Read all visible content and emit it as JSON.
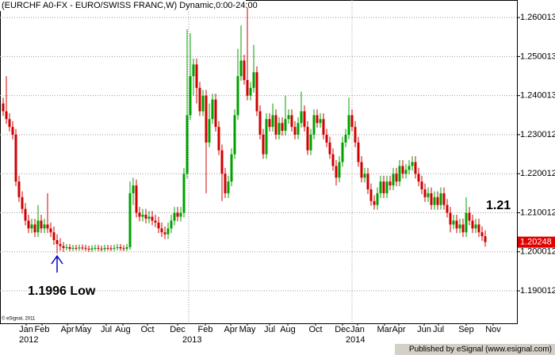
{
  "chart_data": {
    "type": "candlestick",
    "title": "(EURCHF A0-FX - EURO/SWISS FRANC,W) Dynamic,0:00-24:00",
    "copyright": "© eSignal, 2011",
    "footer": "Published by eSignal (www.esignal.com)",
    "annotations": [
      {
        "text": "1.1996 Low",
        "x": 17,
        "y": 1.1996
      },
      {
        "text": "1.21",
        "x": 149,
        "y": 1.21
      }
    ],
    "last_price": 1.20248,
    "up_color": "#00a000",
    "down_color": "#d00000",
    "last_price_color": "#e00000",
    "annotation_arrow_color": "#0000cc",
    "grid": true,
    "xlim": [
      -1,
      162
    ],
    "ylim": [
      1.1817,
      1.2645
    ],
    "yticks": [
      1.190012,
      1.200012,
      1.210012,
      1.220012,
      1.230012,
      1.240013,
      1.250013,
      1.260013
    ],
    "xticks": [
      {
        "value": 7.25,
        "label": "Jan"
      },
      {
        "value": 12.25,
        "label": "Feb"
      },
      {
        "value": 20.25,
        "label": "Apr"
      },
      {
        "value": 25.25,
        "label": "May"
      },
      {
        "value": 32.5,
        "label": "Jul"
      },
      {
        "value": 37.75,
        "label": "Aug"
      },
      {
        "value": 45.5,
        "label": "Oct"
      },
      {
        "value": 55,
        "label": "Dec"
      },
      {
        "value": 63.75,
        "label": "Feb"
      },
      {
        "value": 71.75,
        "label": "Apr"
      },
      {
        "value": 77,
        "label": "May"
      },
      {
        "value": 84,
        "label": "Jul"
      },
      {
        "value": 89.75,
        "label": "Aug"
      },
      {
        "value": 98.5,
        "label": "Oct"
      },
      {
        "value": 107,
        "label": "Dec"
      },
      {
        "value": 111.75,
        "label": "Jan"
      },
      {
        "value": 120.25,
        "label": "Mar"
      },
      {
        "value": 124.75,
        "label": "Apr"
      },
      {
        "value": 132.75,
        "label": "Jun"
      },
      {
        "value": 137.25,
        "label": "Jul"
      },
      {
        "value": 146,
        "label": "Sep"
      },
      {
        "value": 154.5,
        "label": "Nov"
      }
    ],
    "year_ticks": [
      {
        "value": 7,
        "label": "2012"
      },
      {
        "value": 58.5,
        "label": "2013"
      },
      {
        "value": 110,
        "label": "2014"
      }
    ],
    "open": [
      1.238,
      1.236,
      1.234,
      1.232,
      1.23,
      1.218,
      1.214,
      1.211,
      1.208,
      1.206,
      1.207,
      1.205,
      1.208,
      1.206,
      1.207,
      1.206,
      1.205,
      1.203,
      1.202,
      1.2015,
      1.201,
      1.2012,
      1.2008,
      1.201,
      1.2009,
      1.2011,
      1.201,
      1.2008,
      1.2006,
      1.2009,
      1.201,
      1.2008,
      1.2007,
      1.201,
      1.2009,
      1.2008,
      1.201,
      1.2012,
      1.2009,
      1.2008,
      1.2012,
      1.215,
      1.217,
      1.21,
      1.209,
      1.2095,
      1.2085,
      1.209,
      1.208,
      1.2075,
      1.206,
      1.205,
      1.2045,
      1.206,
      1.208,
      1.21,
      1.209,
      1.21,
      1.22,
      1.235,
      1.245,
      1.248,
      1.242,
      1.236,
      1.24,
      1.228,
      1.234,
      1.239,
      1.232,
      1.226,
      1.22,
      1.215,
      1.218,
      1.225,
      1.235,
      1.245,
      1.249,
      1.244,
      1.24,
      1.242,
      1.246,
      1.236,
      1.23,
      1.225,
      1.234,
      1.232,
      1.235,
      1.23,
      1.233,
      1.231,
      1.234,
      1.235,
      1.232,
      1.23,
      1.233,
      1.236,
      1.232,
      1.226,
      1.23,
      1.235,
      1.233,
      1.234,
      1.23,
      1.228,
      1.225,
      1.222,
      1.219,
      1.223,
      1.228,
      1.23,
      1.235,
      1.232,
      1.228,
      1.223,
      1.219,
      1.22,
      1.216,
      1.213,
      1.212,
      1.215,
      1.218,
      1.215,
      1.218,
      1.217,
      1.22,
      1.218,
      1.222,
      1.22,
      1.221,
      1.222,
      1.223,
      1.22,
      1.218,
      1.216,
      1.214,
      1.215,
      1.212,
      1.214,
      1.212,
      1.215,
      1.212,
      1.21,
      1.207,
      1.208,
      1.206,
      1.207,
      1.205,
      1.21,
      1.208,
      1.206,
      1.207,
      1.205,
      1.204
    ],
    "high": [
      1.2395,
      1.245,
      1.2355,
      1.2335,
      1.2315,
      1.2195,
      1.2155,
      1.2125,
      1.2095,
      1.2085,
      1.2085,
      1.212,
      1.2095,
      1.2085,
      1.215,
      1.2075,
      1.2065,
      1.2045,
      1.2035,
      1.2025,
      1.202,
      1.202,
      1.2018,
      1.2018,
      1.2019,
      1.2019,
      1.2018,
      1.2016,
      1.2017,
      1.2018,
      1.2018,
      1.2016,
      1.2018,
      1.2018,
      1.2017,
      1.2018,
      1.202,
      1.202,
      1.2017,
      1.202,
      1.218,
      1.219,
      1.2185,
      1.2115,
      1.211,
      1.211,
      1.2105,
      1.2105,
      1.2095,
      1.209,
      1.2075,
      1.2065,
      1.2075,
      1.2095,
      1.2115,
      1.2115,
      1.2115,
      1.2215,
      1.257,
      1.256,
      1.2495,
      1.2495,
      1.2435,
      1.2415,
      1.2415,
      1.238,
      1.2405,
      1.2405,
      1.2335,
      1.2275,
      1.2215,
      1.2195,
      1.2265,
      1.2365,
      1.252,
      1.258,
      1.2505,
      1.2625,
      1.2435,
      1.253,
      1.2475,
      1.2375,
      1.2315,
      1.2355,
      1.2355,
      1.238,
      1.2365,
      1.2345,
      1.2345,
      1.24,
      1.2365,
      1.2365,
      1.2335,
      1.2345,
      1.241,
      1.2375,
      1.2335,
      1.2315,
      1.2365,
      1.2365,
      1.2355,
      1.2355,
      1.2315,
      1.2295,
      1.2265,
      1.2235,
      1.2245,
      1.2295,
      1.2315,
      1.2395,
      1.2365,
      1.2335,
      1.2295,
      1.2245,
      1.2215,
      1.2215,
      1.2175,
      1.2145,
      1.2165,
      1.2195,
      1.2195,
      1.2195,
      1.2195,
      1.2215,
      1.2215,
      1.2235,
      1.2235,
      1.2225,
      1.2235,
      1.2245,
      1.2245,
      1.2215,
      1.2195,
      1.2175,
      1.2165,
      1.2165,
      1.2155,
      1.2155,
      1.2165,
      1.2165,
      1.2135,
      1.2115,
      1.2095,
      1.2095,
      1.2085,
      1.2085,
      1.214,
      1.2115,
      1.2095,
      1.2085,
      1.2085,
      1.2065,
      1.2055
    ],
    "low": [
      1.2348,
      1.2328,
      1.2308,
      1.2288,
      1.2168,
      1.2128,
      1.2098,
      1.2068,
      1.2048,
      1.2048,
      1.2038,
      1.2038,
      1.2048,
      1.2048,
      1.2048,
      1.2038,
      1.2018,
      1.1996,
      1.2003,
      1.2,
      1.2004,
      1.2002,
      1.2002,
      1.2003,
      1.2003,
      1.2004,
      1.2002,
      1.2,
      1.2,
      1.2003,
      1.2002,
      1.2001,
      1.2001,
      1.2003,
      1.2002,
      1.2002,
      1.2004,
      1.2003,
      1.2002,
      1.2002,
      1.2005,
      1.212,
      1.2088,
      1.2078,
      1.2078,
      1.2073,
      1.2073,
      1.2068,
      1.2063,
      1.2048,
      1.2038,
      1.2033,
      1.2033,
      1.2048,
      1.2068,
      1.2078,
      1.2078,
      1.2088,
      1.2188,
      1.2338,
      1.24,
      1.238,
      1.2348,
      1.2348,
      1.215,
      1.2268,
      1.2328,
      1.2308,
      1.2248,
      1.213,
      1.2138,
      1.2138,
      1.2168,
      1.2238,
      1.2338,
      1.2438,
      1.2428,
      1.2388,
      1.2388,
      1.2408,
      1.2348,
      1.2288,
      1.2238,
      1.2238,
      1.2308,
      1.2308,
      1.2288,
      1.2288,
      1.2298,
      1.2298,
      1.2328,
      1.2308,
      1.2288,
      1.2288,
      1.2318,
      1.2308,
      1.2248,
      1.2248,
      1.2288,
      1.2318,
      1.2318,
      1.2288,
      1.2268,
      1.2238,
      1.2208,
      1.217,
      1.2178,
      1.2218,
      1.2268,
      1.2288,
      1.2308,
      1.2268,
      1.2218,
      1.2178,
      1.2178,
      1.2148,
      1.2118,
      1.2108,
      1.2108,
      1.2138,
      1.2138,
      1.2138,
      1.2158,
      1.2158,
      1.2168,
      1.2168,
      1.2188,
      1.2188,
      1.2198,
      1.2208,
      1.2188,
      1.2168,
      1.2148,
      1.2128,
      1.2128,
      1.2108,
      1.2108,
      1.2108,
      1.2108,
      1.2108,
      1.2088,
      1.205,
      1.2058,
      1.2048,
      1.2048,
      1.2038,
      1.2038,
      1.2068,
      1.2048,
      1.2048,
      1.2038,
      1.2028,
      1.2013
    ],
    "close": [
      1.236,
      1.234,
      1.232,
      1.23,
      1.218,
      1.214,
      1.211,
      1.208,
      1.206,
      1.207,
      1.205,
      1.208,
      1.206,
      1.207,
      1.206,
      1.205,
      1.203,
      1.202,
      1.2015,
      1.201,
      1.2012,
      1.2008,
      1.201,
      1.2009,
      1.2011,
      1.201,
      1.2008,
      1.2006,
      1.2009,
      1.201,
      1.2008,
      1.2007,
      1.201,
      1.2009,
      1.2008,
      1.201,
      1.2012,
      1.2009,
      1.2008,
      1.2012,
      1.215,
      1.217,
      1.21,
      1.209,
      1.2095,
      1.2085,
      1.209,
      1.208,
      1.2075,
      1.206,
      1.205,
      1.2045,
      1.206,
      1.208,
      1.21,
      1.209,
      1.21,
      1.22,
      1.235,
      1.245,
      1.248,
      1.242,
      1.236,
      1.24,
      1.228,
      1.234,
      1.239,
      1.232,
      1.226,
      1.22,
      1.215,
      1.218,
      1.225,
      1.235,
      1.245,
      1.249,
      1.244,
      1.24,
      1.242,
      1.246,
      1.236,
      1.23,
      1.225,
      1.234,
      1.232,
      1.235,
      1.23,
      1.233,
      1.231,
      1.234,
      1.235,
      1.232,
      1.23,
      1.233,
      1.236,
      1.232,
      1.226,
      1.23,
      1.235,
      1.233,
      1.234,
      1.23,
      1.228,
      1.225,
      1.222,
      1.219,
      1.223,
      1.228,
      1.23,
      1.235,
      1.232,
      1.228,
      1.223,
      1.219,
      1.22,
      1.216,
      1.213,
      1.212,
      1.215,
      1.218,
      1.215,
      1.218,
      1.217,
      1.22,
      1.218,
      1.222,
      1.22,
      1.221,
      1.222,
      1.223,
      1.22,
      1.218,
      1.216,
      1.214,
      1.215,
      1.212,
      1.214,
      1.212,
      1.215,
      1.212,
      1.21,
      1.207,
      1.208,
      1.206,
      1.207,
      1.205,
      1.21,
      1.208,
      1.206,
      1.207,
      1.205,
      1.204,
      1.2025
    ]
  }
}
